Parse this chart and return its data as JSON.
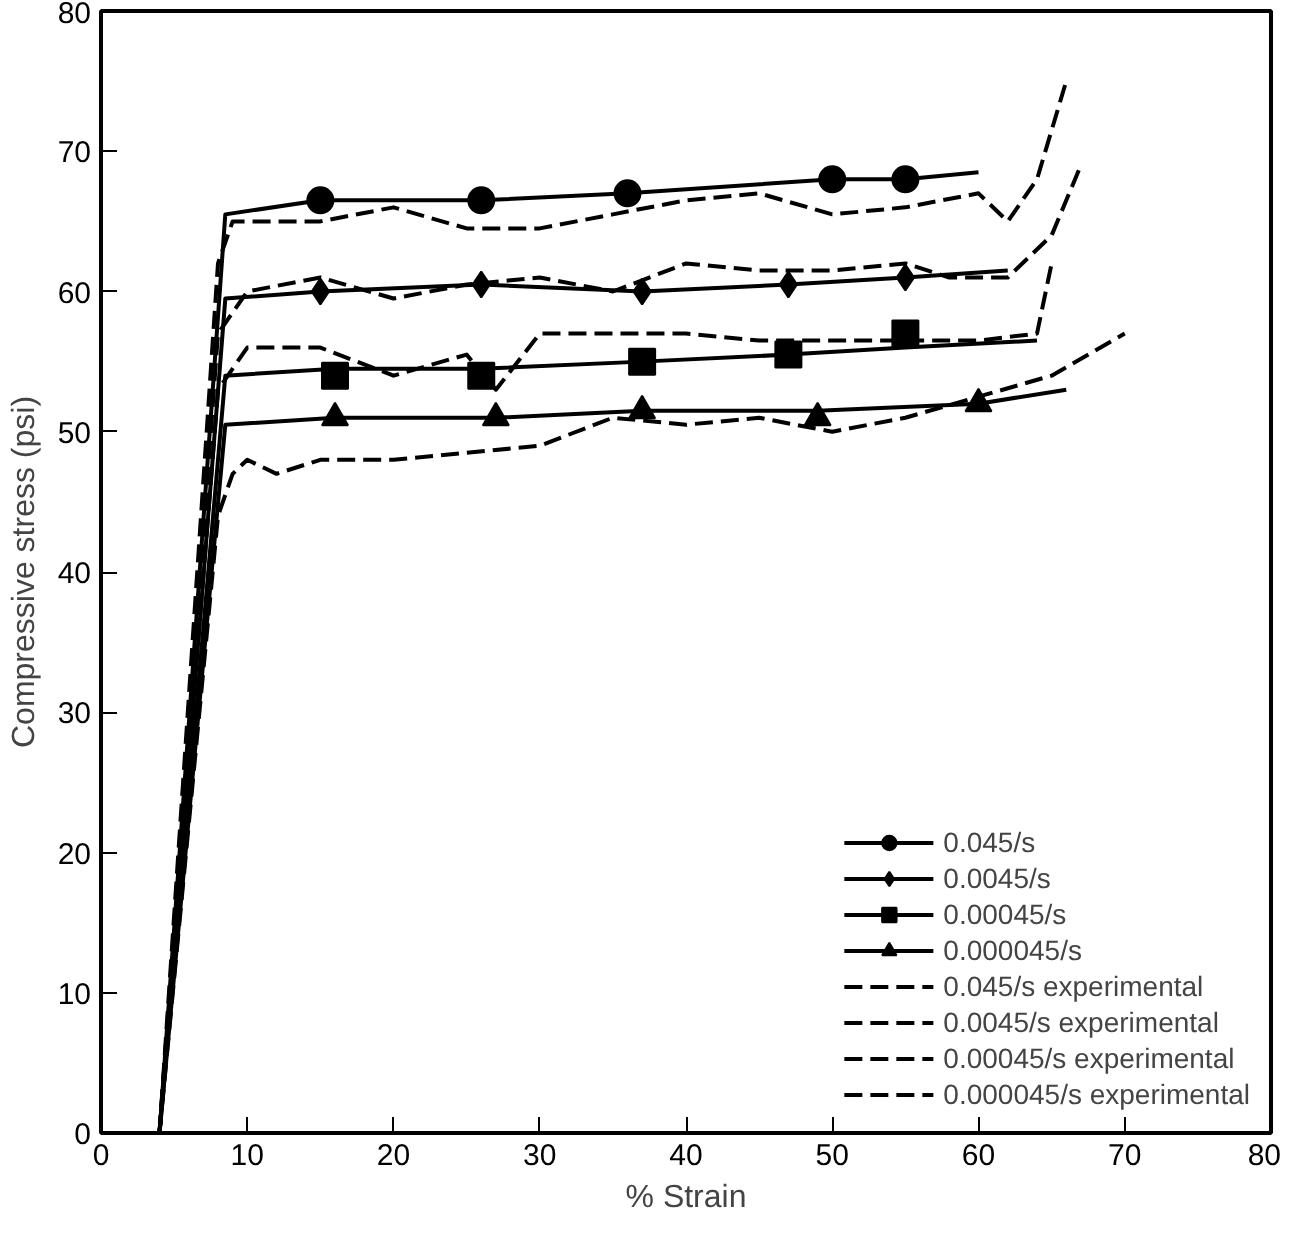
{
  "chart_data": {
    "type": "line",
    "xlabel": "% Strain",
    "ylabel": "Compressive stress (psi)",
    "xlim": [
      0,
      80
    ],
    "ylim": [
      0,
      80
    ],
    "xticks": [
      0,
      10,
      20,
      30,
      40,
      50,
      60,
      70,
      80
    ],
    "yticks": [
      0,
      10,
      20,
      30,
      40,
      50,
      60,
      70,
      80
    ],
    "grid": false,
    "legend": "bottom right",
    "series": [
      {
        "type": "line",
        "color": "#000000",
        "line_style": "solid",
        "x": [
          4,
          8.5,
          15,
          26,
          36,
          50,
          55,
          60
        ],
        "values": [
          0,
          65.5,
          66.5,
          66.5,
          67,
          68,
          68,
          68.5
        ]
      },
      {
        "type": "scatter",
        "name": "0.045/s",
        "color": "#000000",
        "marker": "circle",
        "line_style": "solid",
        "x": [
          15,
          26,
          36,
          50,
          55
        ],
        "values": [
          66.5,
          66.5,
          67,
          68,
          68
        ]
      },
      {
        "type": "line",
        "color": "#000000",
        "line_style": "solid",
        "x": [
          4,
          8.5,
          15,
          26,
          37,
          47,
          55,
          62
        ],
        "values": [
          0,
          59.5,
          60,
          60.5,
          60,
          60.5,
          61,
          61.5
        ]
      },
      {
        "type": "scatter",
        "name": "0.0045/s",
        "color": "#000000",
        "marker": "diamond",
        "line_style": "solid",
        "x": [
          15,
          26,
          37,
          47,
          55
        ],
        "values": [
          60,
          60.5,
          60,
          60.5,
          61
        ]
      },
      {
        "type": "line",
        "color": "#000000",
        "line_style": "solid",
        "x": [
          4,
          8.5,
          16,
          26,
          37,
          47,
          55,
          64
        ],
        "values": [
          0,
          54,
          54.5,
          54.5,
          55,
          55.5,
          56,
          56.5
        ]
      },
      {
        "type": "scatter",
        "name": "0.00045/s",
        "color": "#000000",
        "marker": "square",
        "line_style": "solid",
        "x": [
          16,
          26,
          37,
          47,
          55
        ],
        "values": [
          54,
          54,
          55,
          55.5,
          57
        ]
      },
      {
        "type": "line",
        "color": "#000000",
        "line_style": "solid",
        "x": [
          4,
          8.5,
          16,
          27,
          37,
          49,
          60,
          66
        ],
        "values": [
          0,
          50.5,
          51,
          51,
          51.5,
          51.5,
          52,
          53
        ]
      },
      {
        "type": "scatter",
        "name": "0.000045/s",
        "color": "#000000",
        "marker": "triangle",
        "line_style": "solid",
        "x": [
          16,
          27,
          37,
          49,
          60
        ],
        "values": [
          51,
          51,
          51.5,
          51,
          52
        ]
      },
      {
        "name": "0.045/s experimental",
        "color": "#000000",
        "line_style": "dashed",
        "x": [
          4,
          8,
          9,
          15,
          20,
          25,
          30,
          35,
          40,
          45,
          50,
          55,
          60,
          62,
          64,
          66
        ],
        "values": [
          0,
          62,
          65,
          65,
          66,
          64.5,
          64.5,
          65.5,
          66.5,
          67,
          65.5,
          66,
          67,
          65,
          68,
          75
        ]
      },
      {
        "name": "0.0045/s experimental",
        "color": "#000000",
        "line_style": "dashed",
        "x": [
          4,
          8,
          10,
          15,
          20,
          25,
          30,
          35,
          40,
          45,
          50,
          55,
          58,
          62,
          65,
          67
        ],
        "values": [
          0,
          57,
          60,
          61,
          59.5,
          60.5,
          61,
          60,
          62,
          61.5,
          61.5,
          62,
          61,
          61,
          64,
          69
        ]
      },
      {
        "name": "0.00045/s experimental",
        "color": "#000000",
        "line_style": "dashed",
        "x": [
          4,
          8,
          10,
          15,
          20,
          25,
          27,
          30,
          35,
          40,
          45,
          50,
          55,
          60,
          64,
          65
        ],
        "values": [
          0,
          53,
          56,
          56,
          54,
          55.5,
          53,
          57,
          57,
          57,
          56.5,
          56.5,
          56.5,
          56.5,
          57,
          62
        ]
      },
      {
        "name": "0.000045/s experimental",
        "color": "#000000",
        "line_style": "dashed",
        "x": [
          4,
          8,
          9,
          10,
          12,
          15,
          20,
          25,
          30,
          35,
          40,
          45,
          50,
          55,
          60,
          65,
          70
        ],
        "values": [
          0,
          44,
          47,
          48,
          47,
          48,
          48,
          48.5,
          49,
          51,
          50.5,
          51,
          50,
          51,
          52.5,
          54,
          57
        ]
      }
    ]
  }
}
